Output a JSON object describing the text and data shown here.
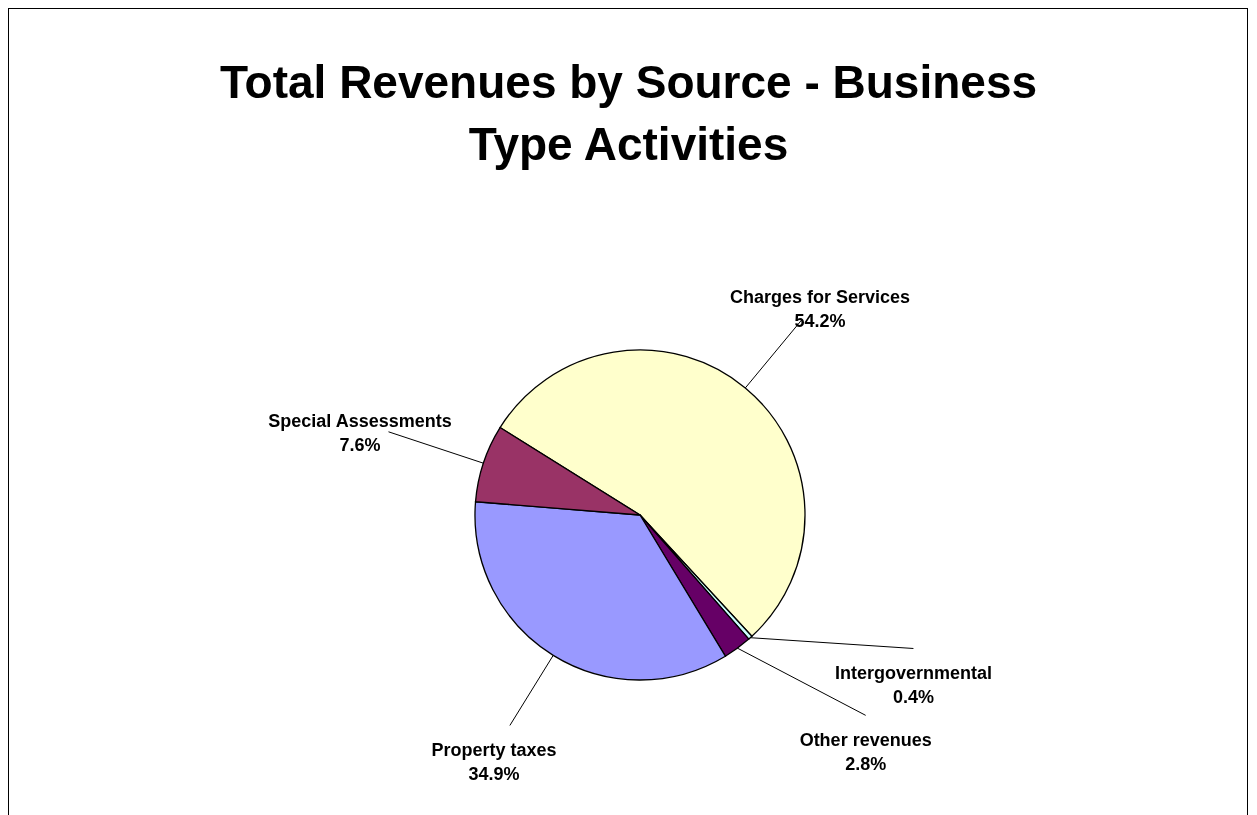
{
  "chart_data": {
    "type": "pie",
    "title": "Total Revenues by Source - Business Type Activities",
    "categories": [
      "Charges for Services",
      "Intergovernmental",
      "Other revenues",
      "Property taxes",
      "Special Assessments"
    ],
    "values": [
      54.2,
      0.4,
      2.8,
      34.9,
      7.6
    ],
    "colors": [
      "#ffffcc",
      "#ccffff",
      "#660066",
      "#9999ff",
      "#993366"
    ],
    "value_labels": [
      "54.2%",
      "0.4%",
      "2.8%",
      "34.9%",
      "7.6%"
    ]
  }
}
